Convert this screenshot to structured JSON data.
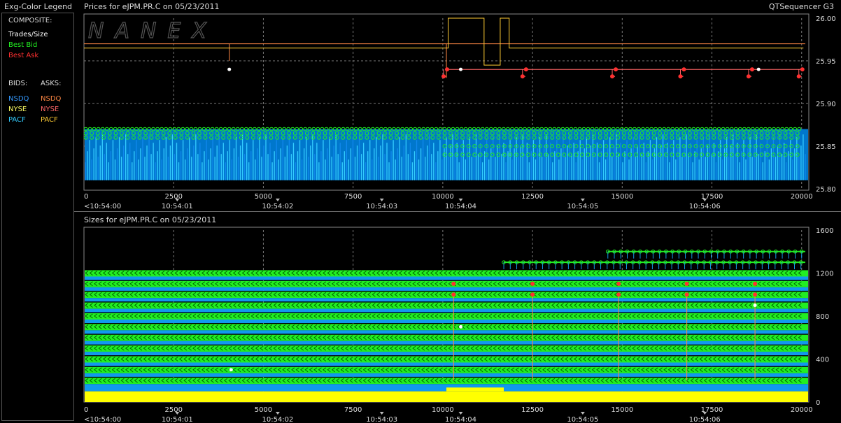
{
  "legend": {
    "title": "Exg-Color Legend",
    "composite_label": "COMPOSITE:",
    "trades_label": "Trades/Size",
    "best_bid_label": "Best Bid",
    "best_ask_label": "Best Ask",
    "bids_label": "BIDS:",
    "asks_label": "ASKS:",
    "bids": [
      "NSDQ",
      "NYSE",
      "PACF"
    ],
    "asks": [
      "NSDQ",
      "NYSE",
      "PACF"
    ],
    "colors": {
      "trades": "#ffffff",
      "best_bid": "#22ee22",
      "best_ask": "#ff3030",
      "bid_nsdq": "#3399ff",
      "bid_nyse": "#ffff66",
      "bid_pacf": "#33ccff",
      "ask_nsdq": "#ff8844",
      "ask_nyse": "#ff6666",
      "ask_pacf": "#ffcc33"
    }
  },
  "app": {
    "title": "QTSequencer G3",
    "watermark": "NANEX"
  },
  "chart_data": [
    {
      "type": "line",
      "title": "Prices for  eJPM.PR.C  on  05/23/2011",
      "xlim": [
        0,
        20200
      ],
      "ylim": [
        25.8,
        26.0
      ],
      "y_ticks": [
        "26.00",
        "25.95",
        "25.90",
        "25.85",
        "25.80"
      ],
      "x_ticks": [
        0,
        2500,
        5000,
        7500,
        10000,
        12500,
        15000,
        17500,
        20000
      ],
      "x_tick_labels": [
        "0",
        "2500",
        "5000",
        "7500",
        "10000",
        "12500",
        "15000",
        "17500",
        "20000"
      ],
      "time_labels": [
        {
          "x": 0,
          "label": "<10:54:00"
        },
        {
          "x": 2600,
          "label": "10:54:01"
        },
        {
          "x": 5400,
          "label": "10:54:02"
        },
        {
          "x": 8300,
          "label": "10:54:03"
        },
        {
          "x": 10500,
          "label": "10:54:04"
        },
        {
          "x": 13900,
          "label": "10:54:05"
        },
        {
          "x": 17300,
          "label": "10:54:06"
        }
      ],
      "series": [
        {
          "name": "Best Ask",
          "points": [
            [
              0,
              25.97
            ],
            [
              4050,
              25.97
            ],
            [
              4050,
              25.95
            ],
            [
              4050,
              25.97
            ],
            [
              10100,
              25.97
            ],
            [
              10100,
              25.93
            ],
            [
              10100,
              25.97
            ],
            [
              20100,
              25.97
            ]
          ]
        },
        {
          "name": "Best Bid",
          "band": [
            25.81,
            25.87
          ]
        },
        {
          "name": "PACF Ask",
          "points": [
            [
              0,
              25.965
            ],
            [
              10150,
              25.965
            ],
            [
              10150,
              26.0
            ],
            [
              11150,
              26.0
            ],
            [
              11150,
              25.945
            ],
            [
              11600,
              25.945
            ],
            [
              11600,
              26.0
            ],
            [
              11850,
              26.0
            ],
            [
              11850,
              25.965
            ],
            [
              20050,
              25.965
            ]
          ]
        },
        {
          "name": "NYSE Ask",
          "points": [
            [
              10100,
              25.94
            ],
            [
              20000,
              25.94
            ]
          ]
        },
        {
          "name": "Trades",
          "points": [
            [
              4050,
              25.94
            ],
            [
              10500,
              25.94
            ],
            [
              18800,
              25.94
            ]
          ]
        }
      ]
    },
    {
      "type": "bar",
      "title": "Sizes for  eJPM.PR.C  on  05/23/2011",
      "xlim": [
        0,
        20200
      ],
      "ylim": [
        0,
        1600
      ],
      "y_ticks": [
        "1600",
        "1200",
        "800",
        "400",
        "0"
      ],
      "x_ticks": [
        0,
        2500,
        5000,
        7500,
        10000,
        12500,
        15000,
        17500,
        20000
      ],
      "x_tick_labels": [
        "0",
        "2500",
        "5000",
        "7500",
        "10000",
        "12500",
        "15000",
        "17500",
        "20000"
      ],
      "time_labels": [
        {
          "x": 0,
          "label": "<10:54:00"
        },
        {
          "x": 2600,
          "label": "10:54:01"
        },
        {
          "x": 5400,
          "label": "10:54:02"
        },
        {
          "x": 8300,
          "label": "10:54:03"
        },
        {
          "x": 10500,
          "label": "10:54:04"
        },
        {
          "x": 13900,
          "label": "10:54:05"
        },
        {
          "x": 17300,
          "label": "10:54:06"
        }
      ],
      "bid_size_levels": [
        1200,
        1100,
        1000,
        900,
        800,
        700,
        600,
        500,
        400,
        300,
        200
      ],
      "ask_size_levels": [
        1300,
        1400
      ],
      "trades": [
        [
          4100,
          300
        ],
        [
          10500,
          700
        ],
        [
          18700,
          900
        ]
      ],
      "yellow_base": 100
    }
  ]
}
